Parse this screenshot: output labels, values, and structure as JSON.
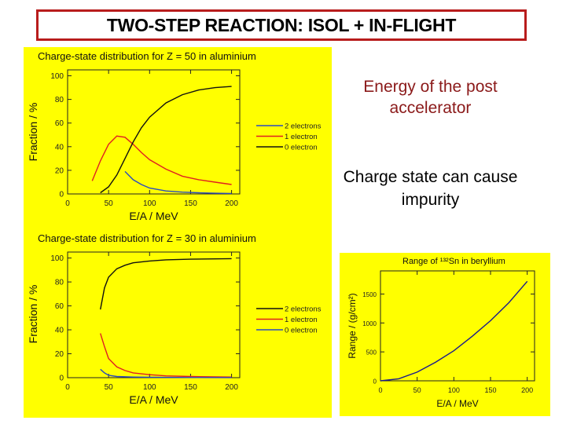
{
  "slide": {
    "title": "TWO-STEP REACTION: ISOL + IN-FLIGHT",
    "note1": "Energy of the post accelerator",
    "note2": "Charge state can cause impurity"
  },
  "colors": {
    "plot_bg": "#ffff00",
    "title_border": "#b81c1c",
    "two_electrons": "#2a4bbf",
    "one_electron": "#e02020",
    "zero_electron": "#101010",
    "range_curve": "#1a1a8c"
  },
  "chart_data": [
    {
      "type": "line",
      "title": "Charge-state distribution for Z = 50 in aluminium",
      "xlabel": "E/A / MeV",
      "ylabel": "Fraction / %",
      "xlim": [
        0,
        210
      ],
      "ylim": [
        0,
        105
      ],
      "xticks": [
        0,
        50,
        100,
        150,
        200
      ],
      "yticks": [
        0,
        20,
        40,
        60,
        80,
        100
      ],
      "grid": false,
      "legend": "right",
      "series": [
        {
          "name": "2 electrons",
          "color": "#2a4bbf",
          "x": [
            70,
            80,
            90,
            100,
            120,
            140,
            160,
            180,
            200
          ],
          "y": [
            19,
            12,
            8,
            5,
            2.5,
            1.5,
            1,
            0.6,
            0.4
          ]
        },
        {
          "name": "1 electron",
          "color": "#e02020",
          "x": [
            30,
            40,
            50,
            60,
            70,
            80,
            90,
            100,
            120,
            140,
            160,
            180,
            200
          ],
          "y": [
            11,
            28,
            42,
            49,
            48,
            42,
            35,
            29,
            21,
            15,
            12,
            10,
            8
          ]
        },
        {
          "name": "0 electron",
          "color": "#101010",
          "x": [
            40,
            50,
            60,
            70,
            80,
            90,
            100,
            120,
            140,
            160,
            180,
            200
          ],
          "y": [
            1,
            6,
            16,
            30,
            44,
            56,
            65,
            77,
            84,
            88,
            90,
            91
          ]
        }
      ]
    },
    {
      "type": "line",
      "title": "Charge-state distribution for Z = 30 in aluminium",
      "xlabel": "E/A / MeV",
      "ylabel": "Fraction / %",
      "xlim": [
        0,
        210
      ],
      "ylim": [
        0,
        105
      ],
      "xticks": [
        0,
        50,
        100,
        150,
        200
      ],
      "yticks": [
        0,
        20,
        40,
        60,
        80,
        100
      ],
      "grid": false,
      "legend": "right",
      "series": [
        {
          "name": "2 electrons",
          "color": "#101010",
          "x": [
            40,
            45,
            50,
            60,
            70,
            80,
            100,
            120,
            150,
            200
          ],
          "y": [
            57,
            75,
            84,
            91,
            94,
            96,
            97.5,
            98.5,
            99,
            99.5
          ]
        },
        {
          "name": "1 electron",
          "color": "#e02020",
          "x": [
            40,
            45,
            50,
            60,
            70,
            80,
            100,
            120,
            150,
            200
          ],
          "y": [
            37,
            26,
            16,
            9,
            6,
            4,
            2.5,
            1.5,
            1,
            0.5
          ]
        },
        {
          "name": "0 electron",
          "color": "#2a4bbf",
          "x": [
            40,
            45,
            50,
            60,
            80,
            100,
            150,
            200
          ],
          "y": [
            7,
            4,
            2,
            1,
            0.5,
            0.3,
            0.1,
            0.05
          ]
        }
      ]
    },
    {
      "type": "line",
      "title": "Range of ¹³²Sn in beryllium",
      "xlabel": "E/A / MeV",
      "ylabel": "Range / (g/cm²)",
      "xlim": [
        0,
        210
      ],
      "ylim": [
        0,
        1900
      ],
      "xticks": [
        0,
        50,
        100,
        150,
        200
      ],
      "yticks": [
        0,
        500,
        1000,
        1500
      ],
      "grid": false,
      "series": [
        {
          "name": "",
          "color": "#1a1a8c",
          "x": [
            0,
            25,
            50,
            75,
            100,
            125,
            150,
            175,
            200
          ],
          "y": [
            0,
            35,
            150,
            320,
            520,
            770,
            1040,
            1350,
            1720
          ]
        }
      ]
    }
  ]
}
